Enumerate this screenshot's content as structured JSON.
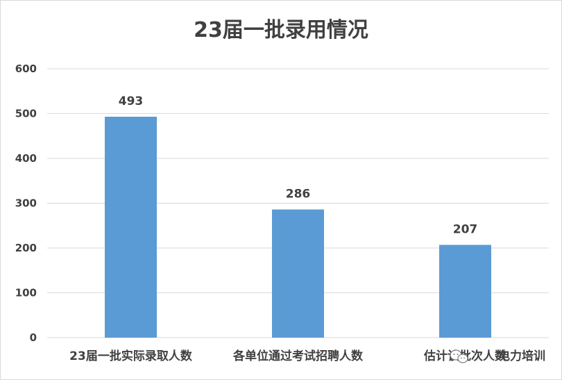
{
  "chart_data": {
    "type": "bar",
    "title": "23届一批录用情况",
    "categories": [
      "23届一批实际录取人数",
      "各单位通过考试招聘人数",
      "估计该批次人数"
    ],
    "values": [
      493,
      286,
      207
    ],
    "ylim": [
      0,
      600
    ],
    "yticks": [
      0,
      100,
      200,
      300,
      400,
      500,
      600
    ],
    "grid": true,
    "legend": "none",
    "bar_color": "#5b9bd5",
    "gridline_color": "#d9d9d9"
  },
  "watermark": {
    "text": "电力培训",
    "icon": "wechat-icon"
  }
}
